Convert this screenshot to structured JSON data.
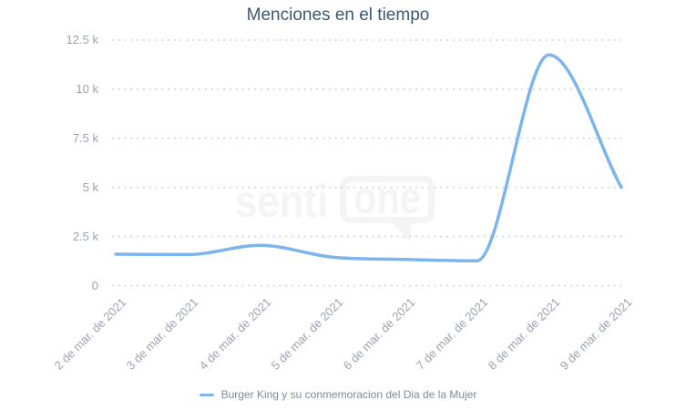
{
  "title": "Menciones en el tiempo",
  "watermark": {
    "text_left": "senti",
    "text_bubble": "one"
  },
  "legend": {
    "items": [
      {
        "label": "Burger King y su conmemoracion del Dia de la Mujer",
        "color": "#7cb5ec"
      }
    ]
  },
  "chart_data": {
    "type": "line",
    "title": "Menciones en el tiempo",
    "categories": [
      "2 de mar. de 2021",
      "3 de mar. de 2021",
      "4 de mar. de 2021",
      "5 de mar. de 2021",
      "6 de mar. de 2021",
      "7 de mar. de 2021",
      "8 de mar. de 2021",
      "9 de mar. de 2021"
    ],
    "series": [
      {
        "name": "Burger King y su conmemoracion del Dia de la Mujer",
        "color": "#7cb5ec",
        "values": [
          1600,
          1580,
          2050,
          1450,
          1330,
          1260,
          11750,
          5000
        ]
      }
    ],
    "xlabel": "",
    "ylabel": "",
    "ylim": [
      0,
      12500
    ],
    "yticks": [
      0,
      2500,
      5000,
      7500,
      10000,
      12500
    ],
    "ytick_labels": [
      "0",
      "2.5 k",
      "5 k",
      "7.5 k",
      "10 k",
      "12.5 k"
    ],
    "grid": "dotted-horizontal",
    "legend_position": "bottom-center",
    "line_style": "smooth"
  },
  "colors": {
    "line": "#7cb5ec",
    "title": "#3e576f",
    "axis_labels": "#9aa2b2",
    "grid": "#c8c8c8",
    "legend_text": "#7e8a9a",
    "watermark": "#f4f4f4",
    "background": "#ffffff"
  }
}
